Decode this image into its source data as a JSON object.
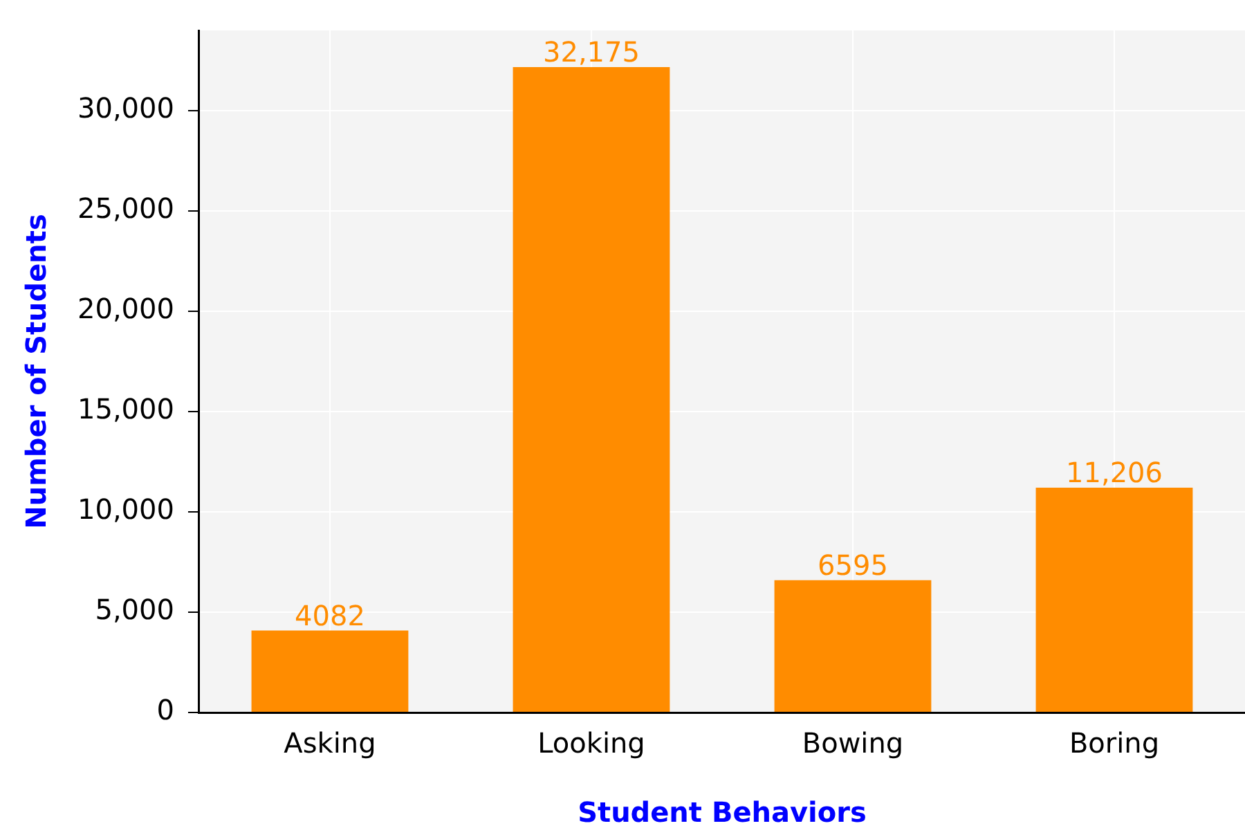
{
  "chart_data": {
    "type": "bar",
    "xlabel": "Student Behaviors",
    "ylabel": "Number of Students",
    "categories": [
      "Asking",
      "Looking",
      "Bowing",
      "Boring"
    ],
    "values": [
      4082,
      32175,
      6595,
      11206
    ],
    "value_labels": [
      "4082",
      "32,175",
      "6595",
      "11,206"
    ],
    "color": "#ff8c00",
    "ylim": [
      0,
      34000
    ],
    "yticks": [
      {
        "value": 0,
        "label": "0"
      },
      {
        "value": 5000,
        "label": "5,000"
      },
      {
        "value": 10000,
        "label": "10,000"
      },
      {
        "value": 15000,
        "label": "15,000"
      },
      {
        "value": 20000,
        "label": "20,000"
      },
      {
        "value": 25000,
        "label": "25,000"
      },
      {
        "value": 30000,
        "label": "30,000"
      }
    ],
    "grid": true,
    "legend": false
  }
}
